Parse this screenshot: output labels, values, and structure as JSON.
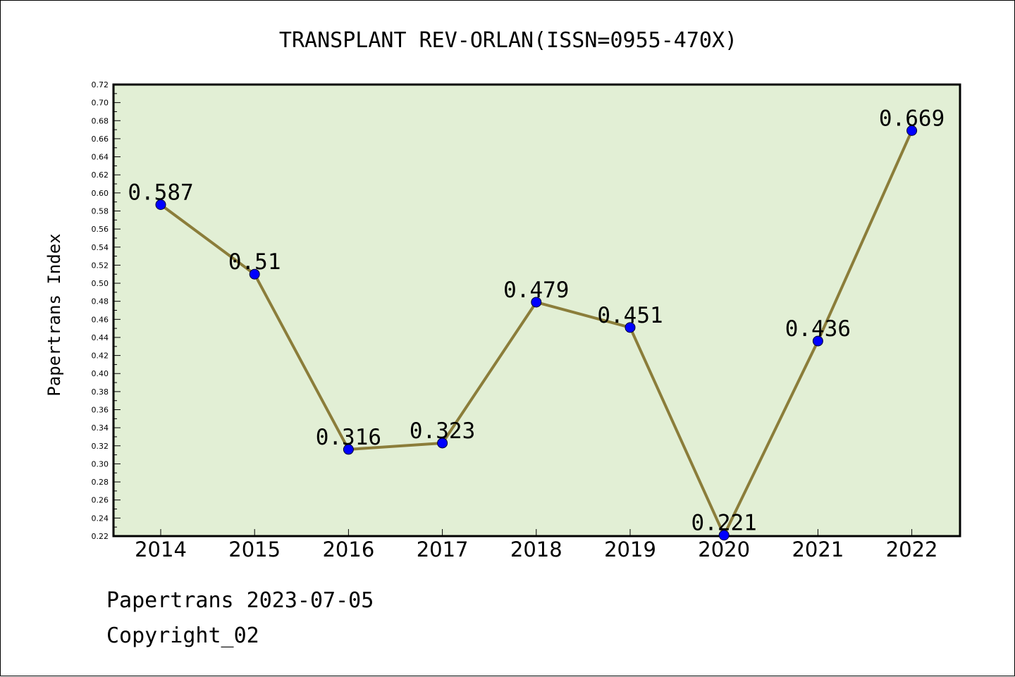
{
  "chart_data": {
    "type": "line",
    "title": "TRANSPLANT REV-ORLAN(ISSN=0955-470X)",
    "xlabel": "",
    "ylabel": "Papertrans Index",
    "categories": [
      "2014",
      "2015",
      "2016",
      "2017",
      "2018",
      "2019",
      "2020",
      "2021",
      "2022"
    ],
    "values": [
      0.587,
      0.51,
      0.316,
      0.323,
      0.479,
      0.451,
      0.221,
      0.436,
      0.669
    ],
    "data_labels": [
      "0.587",
      "0.51",
      "0.316",
      "0.323",
      "0.479",
      "0.451",
      "0.221",
      "0.436",
      "0.669"
    ],
    "ylim": [
      0.22,
      0.72
    ],
    "yticks": [
      "0.22",
      "0.24",
      "0.26",
      "0.28",
      "0.30",
      "0.32",
      "0.34",
      "0.36",
      "0.38",
      "0.40",
      "0.42",
      "0.44",
      "0.46",
      "0.48",
      "0.50",
      "0.52",
      "0.54",
      "0.56",
      "0.58",
      "0.60",
      "0.62",
      "0.64",
      "0.66",
      "0.68",
      "0.70",
      "0.72"
    ],
    "grid": false,
    "colors": {
      "plot_background": "#e2efd5",
      "line": "#8b7d3a",
      "marker": "#0000ff"
    }
  },
  "footer": {
    "date_line": "Papertrans 2023-07-05",
    "copyright": "Copyright_02"
  }
}
